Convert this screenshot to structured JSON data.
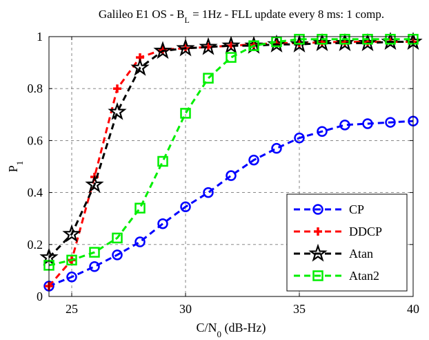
{
  "chart_data": {
    "type": "line",
    "title": {
      "main": "Galileo E1 OS - B",
      "sub": "L",
      "rest": " = 1Hz - FLL update every 8 ms: 1 comp."
    },
    "xlabel": {
      "main": "C/N",
      "sub": "0",
      "rest": " (dB-Hz)"
    },
    "ylabel": {
      "main": "P",
      "sub": "1"
    },
    "xlim": [
      24,
      40
    ],
    "ylim": [
      0,
      1
    ],
    "xticks": [
      25,
      30,
      35,
      40
    ],
    "yticks": [
      0,
      0.2,
      0.4,
      0.6,
      0.8,
      1
    ],
    "ytick_labels": [
      "0",
      "0.2",
      "0.4",
      "0.6",
      "0.8",
      "1"
    ],
    "grid": true,
    "legend_position": "bottom-right",
    "x": [
      24,
      25,
      26,
      27,
      28,
      29,
      30,
      31,
      32,
      33,
      34,
      35,
      36,
      37,
      38,
      39,
      40
    ],
    "series": [
      {
        "name": "CP",
        "color": "#0000ff",
        "marker": "circle",
        "values": [
          0.04,
          0.075,
          0.115,
          0.16,
          0.21,
          0.28,
          0.345,
          0.4,
          0.465,
          0.525,
          0.57,
          0.61,
          0.635,
          0.66,
          0.665,
          0.67,
          0.675
        ]
      },
      {
        "name": "DDCP",
        "color": "#ff0000",
        "marker": "plus",
        "values": [
          0.04,
          0.14,
          0.46,
          0.8,
          0.92,
          0.95,
          0.955,
          0.96,
          0.965,
          0.97,
          0.975,
          0.975,
          0.978,
          0.98,
          0.98,
          0.98,
          0.98
        ]
      },
      {
        "name": "Atan",
        "color": "#000000",
        "marker": "star",
        "values": [
          0.15,
          0.24,
          0.43,
          0.71,
          0.88,
          0.945,
          0.955,
          0.96,
          0.965,
          0.965,
          0.97,
          0.97,
          0.975,
          0.975,
          0.975,
          0.98,
          0.98
        ]
      },
      {
        "name": "Atan2",
        "color": "#00ee00",
        "marker": "square",
        "values": [
          0.12,
          0.14,
          0.17,
          0.225,
          0.34,
          0.52,
          0.705,
          0.84,
          0.92,
          0.965,
          0.98,
          0.99,
          0.99,
          0.99,
          0.99,
          0.99,
          0.99
        ]
      }
    ]
  }
}
